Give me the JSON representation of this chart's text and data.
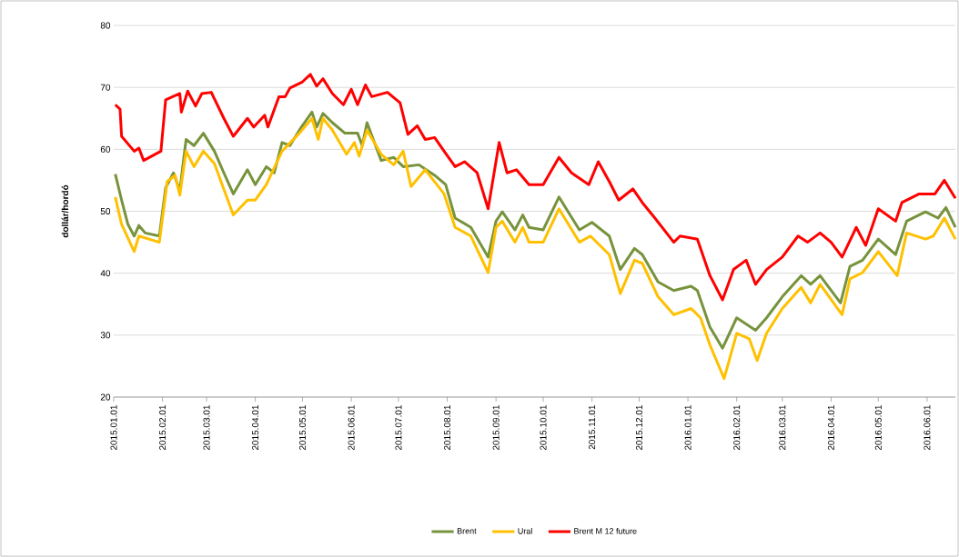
{
  "chart_data": {
    "type": "line",
    "ylabel": "dollár/hordó",
    "xlim": [
      "2015-01-01",
      "2016-06-19"
    ],
    "xticks": [
      {
        "value": "2015-01-01",
        "label": "2015.01.01"
      },
      {
        "value": "2015-02-01",
        "label": "2015.02.01"
      },
      {
        "value": "2015-03-01",
        "label": "2015.03.01"
      },
      {
        "value": "2015-04-01",
        "label": "2015.04.01"
      },
      {
        "value": "2015-05-01",
        "label": "2015.05.01"
      },
      {
        "value": "2015-06-01",
        "label": "2015.06.01"
      },
      {
        "value": "2015-07-01",
        "label": "2015.07.01"
      },
      {
        "value": "2015-08-01",
        "label": "2015.08.01"
      },
      {
        "value": "2015-09-01",
        "label": "2015.09.01"
      },
      {
        "value": "2015-10-01",
        "label": "2015.10.01"
      },
      {
        "value": "2015-11-01",
        "label": "2015.11.01"
      },
      {
        "value": "2015-12-01",
        "label": "2015.12.01"
      },
      {
        "value": "2016-01-01",
        "label": "2016.01.01"
      },
      {
        "value": "2016-02-01",
        "label": "2016.02.01"
      },
      {
        "value": "2016-03-01",
        "label": "2016.03.01"
      },
      {
        "value": "2016-04-01",
        "label": "2016.04.01"
      },
      {
        "value": "2016-05-01",
        "label": "2016.05.01"
      },
      {
        "value": "2016-06-01",
        "label": "2016.06.01"
      }
    ],
    "ylim": [
      20,
      80
    ],
    "yticks": [
      20,
      30,
      40,
      50,
      60,
      70,
      80
    ],
    "grid": "y",
    "legend": "bottom",
    "series": [
      {
        "name": "Brent",
        "color": "#77933c",
        "x": [
          "2015-01-02",
          "2015-01-06",
          "2015-01-10",
          "2015-01-14",
          "2015-01-17",
          "2015-01-21",
          "2015-01-30",
          "2015-02-03",
          "2015-02-08",
          "2015-02-12",
          "2015-02-16",
          "2015-02-21",
          "2015-02-27",
          "2015-03-06",
          "2015-03-12",
          "2015-03-18",
          "2015-03-27",
          "2015-04-01",
          "2015-04-08",
          "2015-04-13",
          "2015-04-18",
          "2015-04-23",
          "2015-04-29",
          "2015-05-07",
          "2015-05-10",
          "2015-05-14",
          "2015-05-20",
          "2015-05-28",
          "2015-06-05",
          "2015-06-08",
          "2015-06-11",
          "2015-06-20",
          "2015-06-28",
          "2015-07-04",
          "2015-07-14",
          "2015-07-24",
          "2015-07-31",
          "2015-08-06",
          "2015-08-16",
          "2015-08-27",
          "2015-09-01",
          "2015-09-05",
          "2015-09-13",
          "2015-09-18",
          "2015-09-22",
          "2015-10-01",
          "2015-10-11",
          "2015-10-24",
          "2015-11-01",
          "2015-11-12",
          "2015-11-19",
          "2015-11-28",
          "2015-12-03",
          "2015-12-13",
          "2015-12-23",
          "2016-01-03",
          "2016-01-07",
          "2016-01-15",
          "2016-01-23",
          "2016-02-01",
          "2016-02-13",
          "2016-02-20",
          "2016-03-01",
          "2016-03-13",
          "2016-03-19",
          "2016-03-25",
          "2016-04-07",
          "2016-04-13",
          "2016-04-21",
          "2016-05-01",
          "2016-05-12",
          "2016-05-19",
          "2016-05-31",
          "2016-06-08",
          "2016-06-13",
          "2016-06-19"
        ],
        "values": [
          56.0,
          51.8,
          47.9,
          46.0,
          47.7,
          46.5,
          46.0,
          53.8,
          56.2,
          53.3,
          61.6,
          60.6,
          62.6,
          59.7,
          56.2,
          52.8,
          56.7,
          54.3,
          57.2,
          56.2,
          61.1,
          60.6,
          63.1,
          66.0,
          63.6,
          65.8,
          64.3,
          62.6,
          62.6,
          60.6,
          64.3,
          58.2,
          58.7,
          57.2,
          57.5,
          55.8,
          54.3,
          48.9,
          47.4,
          42.6,
          48.4,
          49.9,
          47.0,
          49.4,
          47.4,
          47.0,
          52.3,
          47.0,
          48.2,
          46.0,
          40.6,
          44.0,
          43.0,
          38.6,
          37.2,
          37.9,
          37.2,
          31.3,
          27.9,
          32.8,
          30.8,
          32.8,
          36.2,
          39.6,
          38.2,
          39.6,
          35.2,
          41.1,
          42.1,
          45.5,
          43.0,
          48.4,
          49.9,
          48.9,
          50.6,
          47.4
        ]
      },
      {
        "name": "Ural",
        "color": "#ffc000",
        "x": [
          "2015-01-02",
          "2015-01-06",
          "2015-01-14",
          "2015-01-17",
          "2015-01-30",
          "2015-02-04",
          "2015-02-09",
          "2015-02-12",
          "2015-02-16",
          "2015-02-21",
          "2015-02-27",
          "2015-03-06",
          "2015-03-18",
          "2015-03-27",
          "2015-04-01",
          "2015-04-08",
          "2015-04-18",
          "2015-04-29",
          "2015-05-07",
          "2015-05-11",
          "2015-05-14",
          "2015-05-20",
          "2015-05-29",
          "2015-06-03",
          "2015-06-06",
          "2015-06-11",
          "2015-06-20",
          "2015-06-28",
          "2015-07-04",
          "2015-07-09",
          "2015-07-18",
          "2015-07-30",
          "2015-08-06",
          "2015-08-16",
          "2015-08-27",
          "2015-09-01",
          "2015-09-05",
          "2015-09-13",
          "2015-09-18",
          "2015-09-22",
          "2015-10-01",
          "2015-10-11",
          "2015-10-24",
          "2015-10-31",
          "2015-11-12",
          "2015-11-19",
          "2015-11-28",
          "2015-12-03",
          "2015-12-13",
          "2015-12-23",
          "2016-01-03",
          "2016-01-09",
          "2016-01-15",
          "2016-01-24",
          "2016-02-01",
          "2016-02-09",
          "2016-02-14",
          "2016-02-20",
          "2016-03-01",
          "2016-03-13",
          "2016-03-19",
          "2016-03-25",
          "2016-04-08",
          "2016-04-13",
          "2016-04-21",
          "2016-05-01",
          "2016-05-13",
          "2016-05-19",
          "2016-05-31",
          "2016-06-05",
          "2016-06-12",
          "2016-06-19"
        ],
        "values": [
          52.3,
          47.9,
          43.5,
          46.0,
          45.0,
          54.8,
          55.8,
          52.6,
          59.7,
          57.2,
          59.7,
          57.7,
          49.4,
          51.8,
          51.8,
          54.3,
          59.7,
          62.6,
          65.0,
          61.6,
          65.0,
          63.1,
          59.2,
          61.1,
          58.9,
          63.1,
          59.2,
          57.5,
          59.7,
          54.0,
          56.7,
          52.8,
          47.4,
          46.0,
          40.1,
          47.4,
          48.4,
          45.0,
          47.4,
          45.0,
          45.0,
          50.4,
          45.0,
          46.0,
          43.0,
          36.7,
          42.1,
          41.6,
          36.2,
          33.3,
          34.3,
          32.8,
          28.4,
          23.0,
          30.3,
          29.4,
          25.9,
          30.3,
          34.3,
          37.7,
          35.2,
          38.2,
          33.3,
          39.1,
          40.1,
          43.5,
          39.6,
          46.5,
          45.5,
          46.0,
          48.9,
          45.5
        ]
      },
      {
        "name": "Brent M 12 future",
        "color": "#ff0000",
        "x": [
          "2015-01-02",
          "2015-01-05",
          "2015-01-06",
          "2015-01-14",
          "2015-01-17",
          "2015-01-20",
          "2015-01-31",
          "2015-02-03",
          "2015-02-12",
          "2015-02-13",
          "2015-02-17",
          "2015-02-22",
          "2015-02-26",
          "2015-03-04",
          "2015-03-12",
          "2015-03-18",
          "2015-03-27",
          "2015-03-31",
          "2015-04-07",
          "2015-04-09",
          "2015-04-16",
          "2015-04-20",
          "2015-04-23",
          "2015-05-01",
          "2015-05-06",
          "2015-05-10",
          "2015-05-14",
          "2015-05-20",
          "2015-05-27",
          "2015-06-01",
          "2015-06-05",
          "2015-06-10",
          "2015-06-14",
          "2015-06-24",
          "2015-07-02",
          "2015-07-07",
          "2015-07-13",
          "2015-07-18",
          "2015-07-24",
          "2015-07-30",
          "2015-08-06",
          "2015-08-12",
          "2015-08-20",
          "2015-08-27",
          "2015-09-03",
          "2015-09-08",
          "2015-09-14",
          "2015-09-22",
          "2015-10-01",
          "2015-10-11",
          "2015-10-19",
          "2015-10-30",
          "2015-11-05",
          "2015-11-12",
          "2015-11-18",
          "2015-11-27",
          "2015-12-03",
          "2015-12-11",
          "2015-12-23",
          "2015-12-27",
          "2016-01-07",
          "2016-01-15",
          "2016-01-23",
          "2016-01-30",
          "2016-02-07",
          "2016-02-13",
          "2016-02-20",
          "2016-03-01",
          "2016-03-11",
          "2016-03-17",
          "2016-03-25",
          "2016-04-01",
          "2016-04-08",
          "2016-04-17",
          "2016-04-23",
          "2016-05-01",
          "2016-05-12",
          "2016-05-16",
          "2016-05-27",
          "2016-06-06",
          "2016-06-12",
          "2016-06-19"
        ],
        "values": [
          67.2,
          66.5,
          62.1,
          59.7,
          60.2,
          58.2,
          59.7,
          68.0,
          69.0,
          66.0,
          69.4,
          67.0,
          69.0,
          69.2,
          65.0,
          62.1,
          65.0,
          63.6,
          65.5,
          63.6,
          68.5,
          68.5,
          69.9,
          70.9,
          72.1,
          70.2,
          71.4,
          69.0,
          67.2,
          69.7,
          67.2,
          70.4,
          68.5,
          69.2,
          67.5,
          62.4,
          63.8,
          61.6,
          61.9,
          59.7,
          57.2,
          58.0,
          56.2,
          50.4,
          61.1,
          56.2,
          56.7,
          54.3,
          54.3,
          58.7,
          56.2,
          54.3,
          58.0,
          54.8,
          51.8,
          53.6,
          51.4,
          48.9,
          45.0,
          46.0,
          45.5,
          39.6,
          35.7,
          40.6,
          42.1,
          38.2,
          40.6,
          42.6,
          46.0,
          45.0,
          46.5,
          45.0,
          42.6,
          47.4,
          44.5,
          50.4,
          48.4,
          51.4,
          52.8,
          52.8,
          55.0,
          52.1
        ]
      }
    ]
  }
}
